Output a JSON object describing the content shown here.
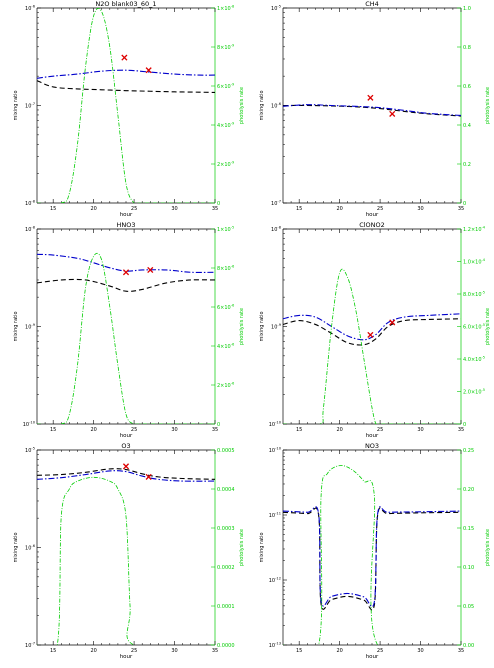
{
  "colors": {
    "model_black": "#000000",
    "model_blue": "#0000cc",
    "photolysis": "#00cc00",
    "observation": "#dd0000"
  },
  "chart_data": [
    {
      "type": "line",
      "title": "N2O blank03_60_1",
      "xlabel": "hour",
      "ylabel": "mixing ratio",
      "ylabel_right": "photolysis rate",
      "xlim": [
        13,
        35
      ],
      "xticks": [
        "15",
        "20",
        "25",
        "30",
        "35"
      ],
      "ylim": [
        1e-08,
        1e-06
      ],
      "yscale": "log",
      "yticks": [
        "10^-8",
        "10^-7",
        "10^-6"
      ],
      "y2lim": [
        0,
        1e-08
      ],
      "y2ticks": [
        "0",
        "2×10^-9",
        "4×10^-9",
        "6×10^-9",
        "8×10^-9",
        "1×10^-8"
      ],
      "series": [
        {
          "style": "dash-black",
          "x": [
            13,
            15,
            18,
            21,
            24,
            27,
            30,
            33,
            35
          ],
          "y": [
            1.8e-07,
            1.55e-07,
            1.48e-07,
            1.45e-07,
            1.42e-07,
            1.4e-07,
            1.38e-07,
            1.37e-07,
            1.36e-07
          ]
        },
        {
          "style": "dashdot-blue",
          "x": [
            13,
            15,
            18,
            21,
            24,
            27,
            30,
            33,
            35
          ],
          "y": [
            1.9e-07,
            2e-07,
            2.1e-07,
            2.25e-07,
            2.3e-07,
            2.2e-07,
            2.1e-07,
            2.05e-07,
            2.05e-07
          ]
        },
        {
          "style": "dashdot-green",
          "axis": "right",
          "x": [
            13,
            16,
            17,
            18,
            19,
            20,
            21,
            22,
            23,
            24,
            25,
            26,
            35
          ],
          "y": [
            0,
            0,
            5e-10,
            3e-09,
            7e-09,
            9.6e-09,
            9.8e-09,
            8e-09,
            4.5e-09,
            1e-09,
            0,
            0,
            0
          ]
        }
      ],
      "markers": {
        "x": [
          23.8,
          26.8
        ],
        "y": [
          3.1e-07,
          2.3e-07
        ]
      }
    },
    {
      "type": "line",
      "title": "CH4",
      "xlabel": "hour",
      "ylabel": "mixing ratio",
      "ylabel_right": "photolysis rate",
      "xlim": [
        13,
        35
      ],
      "xticks": [
        "15",
        "20",
        "25",
        "30",
        "35"
      ],
      "ylim": [
        1e-07,
        1e-05
      ],
      "yscale": "log",
      "yticks": [
        "10^-7",
        "10^-6",
        "10^-5"
      ],
      "y2lim": [
        0,
        1
      ],
      "y2ticks": [
        "0",
        "0.2",
        "0.4",
        "0.6",
        "0.8",
        "1.0"
      ],
      "series": [
        {
          "style": "dash-black",
          "x": [
            13,
            16,
            19,
            22,
            25,
            28,
            31,
            35
          ],
          "y": [
            1e-06,
            1e-06,
            9.9e-07,
            9.7e-07,
            9.3e-07,
            8.7e-07,
            8.2e-07,
            7.8e-07
          ]
        },
        {
          "style": "dashdot-blue",
          "x": [
            13,
            16,
            19,
            22,
            25,
            28,
            31,
            35
          ],
          "y": [
            9.8e-07,
            1.02e-06,
            1e-06,
            9.8e-07,
            9.5e-07,
            8.9e-07,
            8.3e-07,
            7.9e-07
          ]
        }
      ],
      "markers": {
        "x": [
          23.8,
          26.5
        ],
        "y": [
          1.2e-06,
          8.2e-07
        ]
      }
    },
    {
      "type": "line",
      "title": "HNO3",
      "xlabel": "hour",
      "ylabel": "mixing ratio",
      "ylabel_right": "photolysis rate",
      "xlim": [
        13,
        35
      ],
      "xticks": [
        "15",
        "20",
        "25",
        "30",
        "35"
      ],
      "ylim": [
        1e-10,
        1e-08
      ],
      "yscale": "log",
      "yticks": [
        "10^-10",
        "10^-9",
        "10^-8"
      ],
      "y2lim": [
        0,
        1e-05
      ],
      "y2ticks": [
        "0",
        "2×10^-6",
        "4×10^-6",
        "6×10^-6",
        "8×10^-6",
        "1×10^-5"
      ],
      "series": [
        {
          "style": "dash-black",
          "x": [
            13,
            16,
            19,
            22,
            24,
            26,
            29,
            32,
            35
          ],
          "y": [
            2.8e-09,
            3e-09,
            3e-09,
            2.6e-09,
            2.3e-09,
            2.4e-09,
            2.8e-09,
            3e-09,
            3e-09
          ]
        },
        {
          "style": "dashdot-blue",
          "x": [
            13,
            15,
            18,
            20,
            22,
            24,
            26,
            29,
            32,
            35
          ],
          "y": [
            5.5e-09,
            5.4e-09,
            5e-09,
            4.5e-09,
            4e-09,
            3.7e-09,
            3.8e-09,
            3.8e-09,
            3.6e-09,
            3.6e-09
          ]
        },
        {
          "style": "dashdot-green",
          "axis": "right",
          "x": [
            13,
            16,
            17,
            18,
            19,
            20,
            21,
            22,
            23,
            24,
            25,
            26,
            35
          ],
          "y": [
            0,
            0,
            5e-07,
            3e-06,
            7e-06,
            8.6e-06,
            8.4e-06,
            6e-06,
            3e-06,
            5e-07,
            0,
            0,
            0
          ]
        }
      ],
      "markers": {
        "x": [
          24.0,
          27.0
        ],
        "y": [
          3.6e-09,
          3.8e-09
        ]
      }
    },
    {
      "type": "line",
      "title": "ClONO2",
      "xlabel": "hour",
      "ylabel": "mixing ratio",
      "ylabel_right": "photolysis rate",
      "xlim": [
        13,
        35
      ],
      "xticks": [
        "15",
        "20",
        "25",
        "30",
        "35"
      ],
      "ylim": [
        1e-10,
        1e-08
      ],
      "yscale": "log",
      "yticks": [
        "10^-10",
        "10^-9",
        "10^-8"
      ],
      "y2lim": [
        0,
        0.00012
      ],
      "y2ticks": [
        "0",
        "2.0×10^-5",
        "4.0×10^-5",
        "6.0×10^-5",
        "8.0×10^-5",
        "1.0×10^-4",
        "1.2×10^-4"
      ],
      "series": [
        {
          "style": "dash-black",
          "x": [
            13,
            15,
            17,
            19,
            21,
            23,
            24.5,
            26,
            28,
            31,
            35
          ],
          "y": [
            1.05e-09,
            1.15e-09,
            1.05e-09,
            8.5e-10,
            6.8e-10,
            6.5e-10,
            7.5e-10,
            1e-09,
            1.15e-09,
            1.18e-09,
            1.2e-09
          ]
        },
        {
          "style": "dashdot-blue",
          "x": [
            13,
            15,
            17,
            19,
            21,
            23,
            24.5,
            26,
            28,
            31,
            35
          ],
          "y": [
            1.2e-09,
            1.3e-09,
            1.25e-09,
            1e-09,
            8e-10,
            7.3e-10,
            8.3e-10,
            1.1e-09,
            1.25e-09,
            1.3e-09,
            1.35e-09
          ]
        },
        {
          "style": "dashdot-green",
          "axis": "right",
          "x": [
            13,
            17.5,
            18,
            19,
            20,
            21,
            22,
            23,
            24,
            24.5,
            25,
            35
          ],
          "y": [
            0,
            0,
            1e-05,
            6e-05,
            9.3e-05,
            9e-05,
            7e-05,
            4e-05,
            1e-05,
            0,
            0,
            0
          ]
        }
      ],
      "markers": {
        "x": [
          23.8,
          26.5
        ],
        "y": [
          8.2e-10,
          1.1e-09
        ]
      }
    },
    {
      "type": "line",
      "title": "O3",
      "xlabel": "hour",
      "ylabel": "mixing ratio",
      "ylabel_right": "photolysis rate",
      "xlim": [
        13,
        35
      ],
      "xticks": [
        "15",
        "20",
        "25",
        "30",
        "35"
      ],
      "ylim": [
        1e-07,
        1e-05
      ],
      "yscale": "log",
      "yticks": [
        "10^-7",
        "10^-6",
        "10^-5"
      ],
      "y2lim": [
        0,
        0.0005
      ],
      "y2ticks": [
        "0.0000",
        "0.0001",
        "0.0002",
        "0.0003",
        "0.0004",
        "0.0005"
      ],
      "series": [
        {
          "style": "dash-black",
          "x": [
            13,
            16,
            19,
            22,
            24,
            26,
            28,
            31,
            35
          ],
          "y": [
            5.5e-06,
            5.6e-06,
            5.9e-06,
            6.4e-06,
            6.3e-06,
            5.7e-06,
            5.3e-06,
            5.1e-06,
            5e-06
          ]
        },
        {
          "style": "dashdot-blue",
          "x": [
            13,
            16,
            19,
            22,
            24,
            26,
            28,
            31,
            35
          ],
          "y": [
            5e-06,
            5.2e-06,
            5.6e-06,
            6.1e-06,
            6e-06,
            5.4e-06,
            5e-06,
            4.8e-06,
            4.8e-06
          ]
        },
        {
          "style": "dashdot-green",
          "axis": "right",
          "x": [
            13,
            15.5,
            16,
            17,
            18,
            20,
            22,
            23,
            24,
            24.5,
            25,
            35
          ],
          "y": [
            0,
            0,
            0.00033,
            0.0004,
            0.00042,
            0.00043,
            0.00042,
            0.0004,
            0.00033,
            0.0001,
            0,
            0
          ]
        }
      ],
      "markers": {
        "x": [
          24.0,
          26.8
        ],
        "y": [
          6.8e-06,
          5.3e-06
        ]
      }
    },
    {
      "type": "line",
      "title": "NO3",
      "xlabel": "hour",
      "ylabel": "mixing ratio",
      "ylabel_right": "photolysis rate",
      "xlim": [
        13,
        35
      ],
      "xticks": [
        "15",
        "20",
        "25",
        "30",
        "35"
      ],
      "ylim": [
        1e-13,
        1e-10
      ],
      "yscale": "log",
      "yticks": [
        "10^-13",
        "10^-12",
        "10^-11",
        "10^-10"
      ],
      "y2lim": [
        0,
        0.25
      ],
      "y2ticks": [
        "0.00",
        "0.05",
        "0.10",
        "0.15",
        "0.20",
        "0.25"
      ],
      "series": [
        {
          "style": "dash-black",
          "x": [
            13,
            16,
            17.4,
            17.7,
            19,
            21,
            23,
            24.3,
            24.7,
            26,
            30,
            35
          ],
          "y": [
            1.1e-11,
            1.05e-11,
            1e-11,
            4.3e-13,
            5e-13,
            5.6e-13,
            4.9e-13,
            4.2e-13,
            1e-11,
            1.05e-11,
            1.08e-11,
            1.1e-11
          ]
        },
        {
          "style": "dashdot-blue",
          "x": [
            13,
            16,
            17.4,
            17.7,
            19,
            21,
            23,
            24.3,
            24.7,
            26,
            30,
            35
          ],
          "y": [
            1.15e-11,
            1.1e-11,
            1.05e-11,
            4.8e-13,
            5.6e-13,
            6.2e-13,
            5.5e-13,
            4.7e-13,
            1.05e-11,
            1.1e-11,
            1.12e-11,
            1.15e-11
          ]
        },
        {
          "style": "dashdot-green",
          "axis": "right",
          "x": [
            13,
            17.4,
            17.7,
            18.5,
            20,
            21.5,
            23,
            24.3,
            24.7,
            35
          ],
          "y": [
            0,
            0,
            0.19,
            0.22,
            0.23,
            0.225,
            0.21,
            0.19,
            0,
            0
          ]
        }
      ],
      "markers": {
        "x": [],
        "y": []
      }
    }
  ]
}
